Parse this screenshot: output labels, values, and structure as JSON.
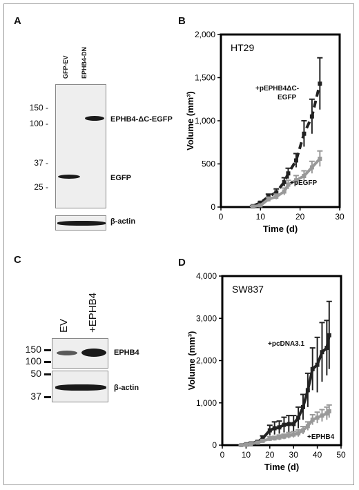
{
  "panels": {
    "A": {
      "letter": "A",
      "lanes": [
        "GFP-EV",
        "EPHB4-DN"
      ],
      "mw_markers": [
        "150 -",
        "100 -",
        "37 -",
        "25 -"
      ],
      "band_labels": [
        "EPHB4-ΔC-EGFP",
        "EGFP"
      ],
      "loading_label": "β-actin"
    },
    "C": {
      "letter": "C",
      "lanes": [
        "EV",
        "+EPHB4"
      ],
      "mw_markers": [
        "150",
        "100",
        "50",
        "37"
      ],
      "band_label": "EPHB4",
      "loading_label": "β-actin"
    }
  },
  "chart_data": [
    {
      "panel": "B",
      "type": "line",
      "inset_label": "HT29",
      "xlabel": "Time (d)",
      "ylabel": "Volume (mm³)",
      "xlim": [
        0,
        30
      ],
      "ylim": [
        0,
        2000
      ],
      "xticks": [
        "0",
        "10",
        "20",
        "30"
      ],
      "yticks": [
        "0",
        "500",
        "1,000",
        "1,500",
        "2,000"
      ],
      "series": [
        {
          "name": "+pEPHB4ΔC-EGFP",
          "color": "#222222",
          "dashed": true,
          "x": [
            8,
            10,
            12,
            14,
            16,
            17,
            19,
            21,
            23,
            25
          ],
          "y": [
            10,
            50,
            120,
            170,
            290,
            390,
            540,
            850,
            1050,
            1430
          ],
          "err": [
            5,
            15,
            30,
            40,
            50,
            60,
            80,
            150,
            200,
            300
          ]
        },
        {
          "name": "+pEGFP",
          "color": "#999999",
          "dashed": false,
          "x": [
            8,
            10,
            12,
            14,
            16,
            17,
            19,
            21,
            23,
            25
          ],
          "y": [
            5,
            20,
            90,
            120,
            180,
            260,
            310,
            360,
            460,
            560
          ],
          "err": [
            3,
            10,
            25,
            30,
            40,
            50,
            55,
            60,
            70,
            90
          ]
        }
      ]
    },
    {
      "panel": "D",
      "type": "line",
      "inset_label": "SW837",
      "xlabel": "Time (d)",
      "ylabel": "Volume (mm³)",
      "xlim": [
        0,
        50
      ],
      "ylim": [
        0,
        4000
      ],
      "xticks": [
        "0",
        "10",
        "20",
        "30",
        "40",
        "50"
      ],
      "yticks": [
        "0",
        "1,000",
        "2,000",
        "3,000",
        "4,000"
      ],
      "series": [
        {
          "name": "+pcDNA3.1",
          "color": "#222222",
          "dashed": false,
          "x": [
            8,
            10,
            12,
            15,
            17,
            20,
            22,
            24,
            26,
            28,
            30,
            32,
            34,
            36,
            38,
            40,
            42,
            44,
            45
          ],
          "y": [
            0,
            20,
            40,
            80,
            160,
            350,
            400,
            420,
            480,
            500,
            500,
            650,
            900,
            1300,
            1800,
            1900,
            2200,
            2300,
            2600
          ],
          "err": [
            0,
            10,
            20,
            30,
            60,
            120,
            150,
            150,
            180,
            200,
            200,
            250,
            300,
            400,
            500,
            650,
            700,
            650,
            800
          ]
        },
        {
          "name": "+EPHB4",
          "color": "#999999",
          "dashed": false,
          "x": [
            8,
            10,
            12,
            15,
            17,
            20,
            22,
            24,
            26,
            28,
            30,
            32,
            34,
            36,
            38,
            40,
            42,
            44,
            45
          ],
          "y": [
            0,
            10,
            30,
            60,
            100,
            150,
            160,
            180,
            200,
            230,
            250,
            280,
            350,
            450,
            600,
            650,
            700,
            750,
            800
          ],
          "err": [
            0,
            5,
            10,
            20,
            30,
            50,
            50,
            60,
            60,
            70,
            70,
            80,
            90,
            100,
            120,
            130,
            140,
            150,
            150
          ]
        }
      ]
    }
  ],
  "chart_labels": {
    "B": {
      "letter": "B",
      "series_labels": [
        "+pEPHB4ΔC-",
        "EGFP",
        "+pEGFP"
      ]
    },
    "D": {
      "letter": "D",
      "series_labels": [
        "+pcDNA3.1",
        "+EPHB4"
      ]
    }
  }
}
